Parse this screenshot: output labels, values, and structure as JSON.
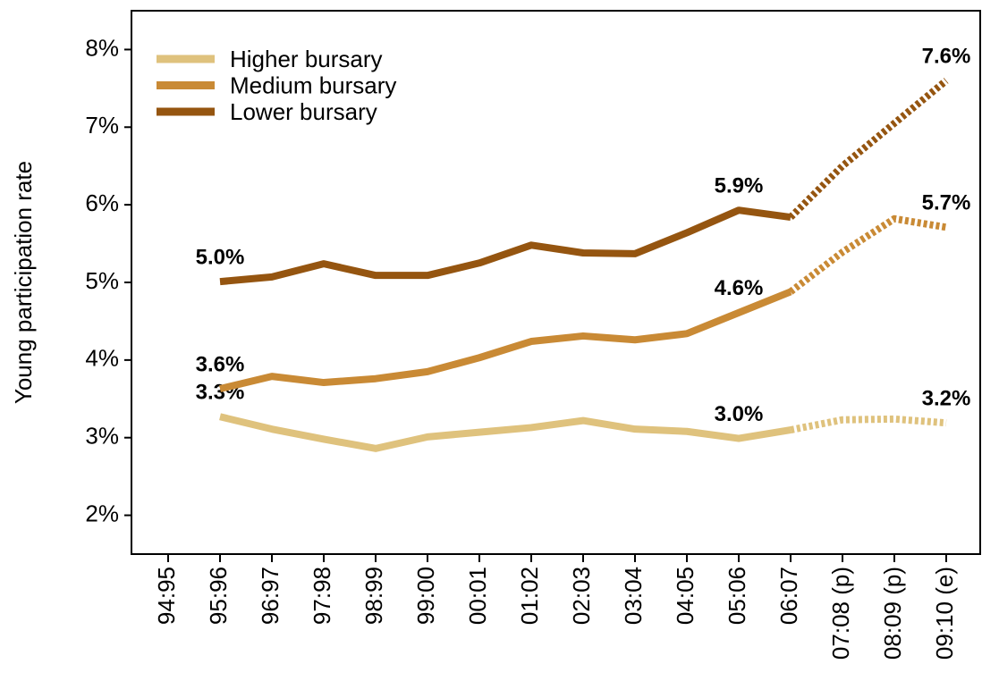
{
  "chart_data": {
    "type": "line",
    "ylabel": "Young participation rate",
    "categories": [
      "94:95",
      "95:96",
      "96:97",
      "97:98",
      "98:99",
      "99:00",
      "00:01",
      "01:02",
      "02:03",
      "03:04",
      "04:05",
      "05:06",
      "06:07",
      "07:08 (p)",
      "08:09 (p)",
      "09:10 (e)"
    ],
    "series": [
      {
        "name": "Higher bursary",
        "color": "#dfc27d",
        "dashed_from": 12,
        "values": [
          null,
          3.27,
          3.11,
          2.98,
          2.86,
          3.01,
          3.07,
          3.13,
          3.22,
          3.11,
          3.08,
          2.99,
          3.1,
          3.23,
          3.24,
          3.19
        ],
        "value_labels": [
          null,
          "3.3%",
          null,
          null,
          null,
          null,
          null,
          null,
          null,
          null,
          null,
          "3.0%",
          null,
          null,
          null,
          "3.2%"
        ]
      },
      {
        "name": "Medium bursary",
        "color": "#c98a35",
        "dashed_from": 12,
        "values": [
          null,
          3.63,
          3.79,
          3.71,
          3.76,
          3.85,
          4.03,
          4.24,
          4.31,
          4.26,
          4.34,
          4.61,
          4.88,
          5.39,
          5.82,
          5.71
        ],
        "value_labels": [
          null,
          "3.6%",
          null,
          null,
          null,
          null,
          null,
          null,
          null,
          null,
          null,
          "4.6%",
          null,
          null,
          null,
          "5.7%"
        ]
      },
      {
        "name": "Lower bursary",
        "color": "#955510",
        "dashed_from": 12,
        "values": [
          null,
          5.01,
          5.07,
          5.24,
          5.09,
          5.09,
          5.25,
          5.48,
          5.38,
          5.37,
          5.64,
          5.93,
          5.84,
          6.5,
          7.05,
          7.6
        ],
        "value_labels": [
          null,
          "5.0%",
          null,
          null,
          null,
          null,
          null,
          null,
          null,
          null,
          null,
          "5.9%",
          null,
          null,
          null,
          "7.6%"
        ]
      }
    ],
    "ylim": [
      1.5,
      8.5
    ],
    "yticks": [
      {
        "value": 2,
        "label": "2%"
      },
      {
        "value": 3,
        "label": "3%"
      },
      {
        "value": 4,
        "label": "4%"
      },
      {
        "value": 5,
        "label": "5%"
      },
      {
        "value": 6,
        "label": "6%"
      },
      {
        "value": 7,
        "label": "7%"
      },
      {
        "value": 8,
        "label": "8%"
      }
    ],
    "legend": "upper left"
  }
}
